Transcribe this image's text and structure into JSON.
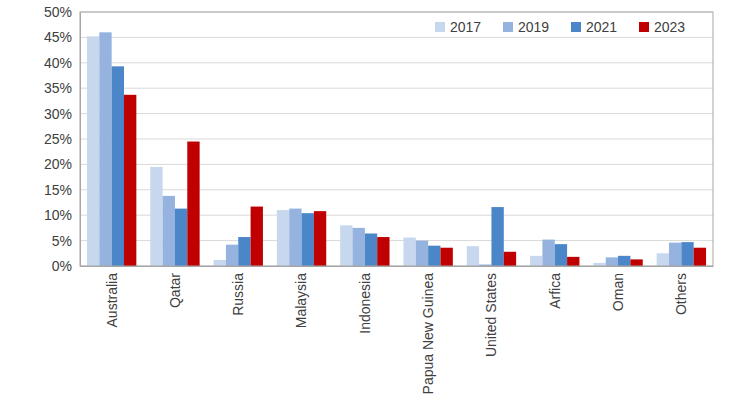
{
  "chart_data": {
    "type": "bar",
    "categories": [
      "Australia",
      "Qatar",
      "Russia",
      "Malaysia",
      "Indonesia",
      "Papua New Guinea",
      "United States",
      "Arfica",
      "Oman",
      "Others"
    ],
    "series": [
      {
        "name": "2017",
        "color": "#c6d7ee",
        "values": [
          45.2,
          19.5,
          1.2,
          11.0,
          8.0,
          5.6,
          3.9,
          2.0,
          0.6,
          2.5
        ]
      },
      {
        "name": "2019",
        "color": "#95b3de",
        "values": [
          46.0,
          13.8,
          4.2,
          11.3,
          7.5,
          5.0,
          0.3,
          5.2,
          1.7,
          4.6
        ]
      },
      {
        "name": "2021",
        "color": "#4a86c8",
        "values": [
          39.3,
          11.3,
          5.7,
          10.4,
          6.4,
          4.0,
          11.6,
          4.3,
          2.0,
          4.7
        ]
      },
      {
        "name": "2023",
        "color": "#c00000",
        "values": [
          33.7,
          24.5,
          11.7,
          10.8,
          5.7,
          3.6,
          2.8,
          1.8,
          1.3,
          3.6
        ]
      }
    ],
    "ylim": [
      0,
      50
    ],
    "yticks": [
      {
        "value": 0,
        "label": "0%"
      },
      {
        "value": 5,
        "label": "5%"
      },
      {
        "value": 10,
        "label": "10%"
      },
      {
        "value": 15,
        "label": "15%"
      },
      {
        "value": 20,
        "label": "20%"
      },
      {
        "value": 25,
        "label": "25%"
      },
      {
        "value": 30,
        "label": "30%"
      },
      {
        "value": 35,
        "label": "35%"
      },
      {
        "value": 40,
        "label": "40%"
      },
      {
        "value": 45,
        "label": "45%"
      },
      {
        "value": 50,
        "label": "50%"
      }
    ],
    "grid": true,
    "legend": "upper right"
  }
}
